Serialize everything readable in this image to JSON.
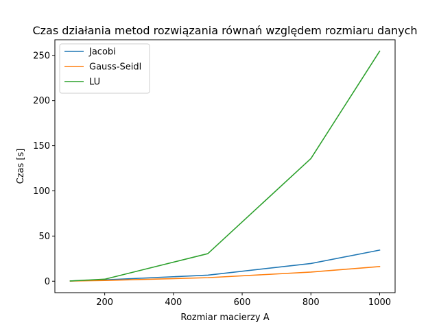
{
  "chart_data": {
    "type": "line",
    "title": "Czas działania metod rozwiązania równań względem rozmiaru danych",
    "xlabel": "Rozmiar macierzy A",
    "ylabel": "Czas [s]",
    "xlim": [
      55,
      1045
    ],
    "ylim": [
      -12.7,
      267.3
    ],
    "xticks": [
      200,
      400,
      600,
      800,
      1000
    ],
    "yticks": [
      0,
      50,
      100,
      150,
      200,
      250
    ],
    "grid": false,
    "legend_position": "top-left",
    "x": [
      100,
      200,
      500,
      800,
      1000
    ],
    "series": [
      {
        "name": "Jacobi",
        "color": "#1f77b4",
        "values": [
          0.3,
          1.5,
          6.7,
          19.6,
          34.4
        ]
      },
      {
        "name": "Gauss-Seidl",
        "color": "#ff7f0e",
        "values": [
          0.2,
          0.8,
          3.9,
          10.1,
          16.2
        ]
      },
      {
        "name": "LU",
        "color": "#2ca02c",
        "values": [
          0.3,
          2.2,
          30.5,
          135.8,
          254.6
        ]
      }
    ]
  }
}
